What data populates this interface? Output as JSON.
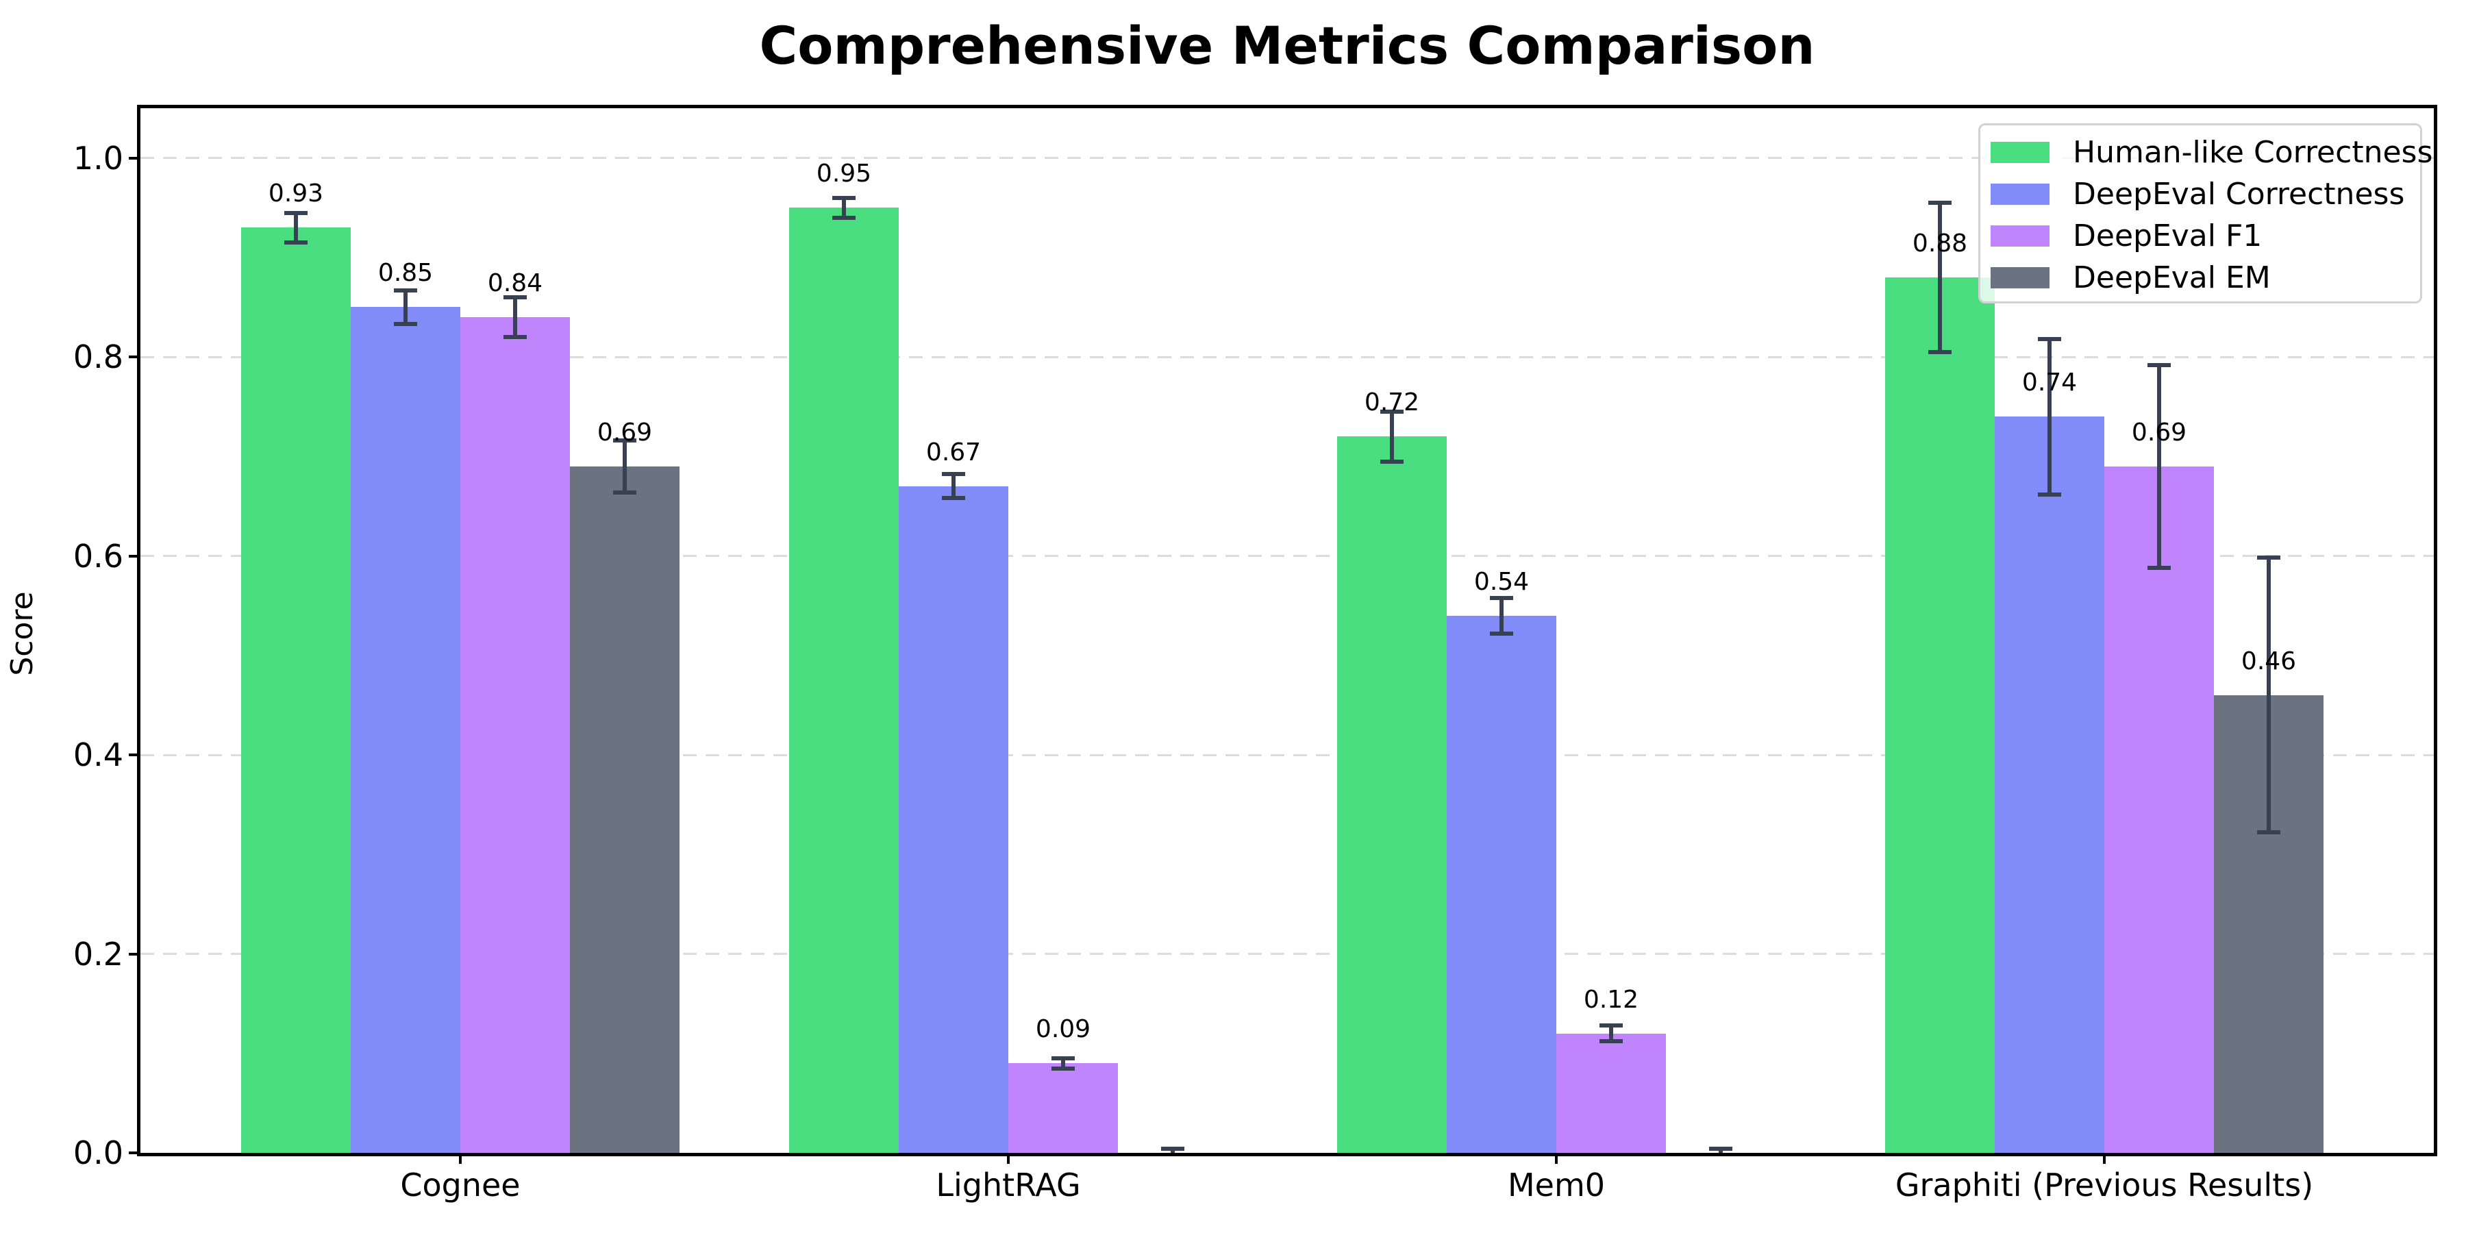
{
  "chart_data": {
    "type": "bar",
    "title": "Comprehensive Metrics Comparison",
    "ylabel": "Score",
    "xlabel": "",
    "categories": [
      "Cognee",
      "LightRAG",
      "Mem0",
      "Graphiti (Previous Results)"
    ],
    "series": [
      {
        "name": "Human-like Correctness",
        "color": "#4ade80",
        "values": [
          0.93,
          0.95,
          0.72,
          0.88
        ],
        "errors": [
          0.015,
          0.01,
          0.025,
          0.075
        ],
        "labels": [
          "0.93",
          "0.95",
          "0.72",
          "0.88"
        ]
      },
      {
        "name": "DeepEval Correctness",
        "color": "#818cf8",
        "values": [
          0.85,
          0.67,
          0.54,
          0.74
        ],
        "errors": [
          0.017,
          0.012,
          0.018,
          0.078
        ],
        "labels": [
          "0.85",
          "0.67",
          "0.54",
          "0.74"
        ]
      },
      {
        "name": "DeepEval F1",
        "color": "#c084fc",
        "values": [
          0.84,
          0.09,
          0.12,
          0.69
        ],
        "errors": [
          0.02,
          0.005,
          0.008,
          0.102
        ],
        "labels": [
          "0.84",
          "0.09",
          "0.12",
          "0.69"
        ]
      },
      {
        "name": "DeepEval EM",
        "color": "#6b7280",
        "values": [
          0.69,
          0.0,
          0.0,
          0.46
        ],
        "errors": [
          0.026,
          0.004,
          0.004,
          0.138
        ],
        "labels": [
          "0.69",
          "",
          "",
          "0.46"
        ]
      }
    ],
    "ylim": [
      0,
      1.05
    ],
    "yticks": {
      "values": [
        0.0,
        0.2,
        0.4,
        0.6,
        0.8,
        1.0
      ],
      "labels": [
        "0.0",
        "0.2",
        "0.4",
        "0.6",
        "0.8",
        "1.0"
      ]
    },
    "grid": "horizontal-dashed",
    "legend_position": "upper right",
    "colors": {
      "error_bar": "#374151",
      "grid": "#dcdcdc",
      "axis": "#000000",
      "legend_border": "#d2d2d2",
      "text": "#000000"
    }
  }
}
